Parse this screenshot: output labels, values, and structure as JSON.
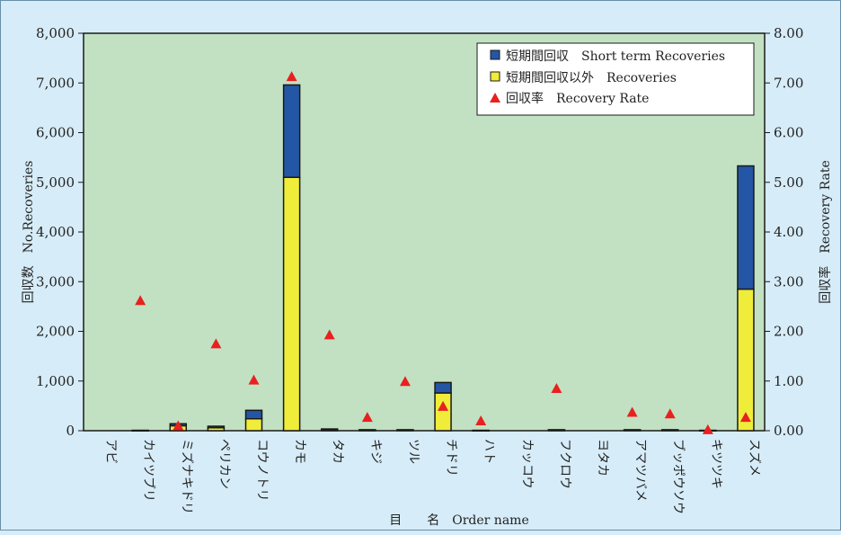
{
  "chart_data": {
    "type": "bar",
    "title": "",
    "xlabel": "目　　名　Order name",
    "ylabel": "回収数　No.Recoveries",
    "ylabel_right": "回収率　Recovery Rate",
    "ylim": [
      0,
      8000
    ],
    "ylim_right": [
      0,
      8
    ],
    "yticks": [
      "0",
      "1,000",
      "2,000",
      "3,000",
      "4,000",
      "5,000",
      "6,000",
      "7,000",
      "8,000"
    ],
    "yticks_right": [
      "0.00",
      "1.00",
      "2.00",
      "3.00",
      "4.00",
      "5.00",
      "6.00",
      "7.00",
      "8.00"
    ],
    "stacked": true,
    "grid": false,
    "legend_position": "top-right",
    "categories": [
      "アビ",
      "カイツブリ",
      "ミズナキドリ",
      "ペリカン",
      "コウノトリ",
      "カモ",
      "タカ",
      "キジ",
      "ツル",
      "チドリ",
      "ハト",
      "カッコウ",
      "フクロウ",
      "ヨタカ",
      "アマツバメ",
      "ブッポウソウ",
      "キツツキ",
      "スズメ"
    ],
    "series": [
      {
        "name": "短期間回収以外　Recoveries",
        "kind": "bar",
        "color": "#f0ec3a",
        "values": [
          0,
          5,
          100,
          60,
          240,
          5100,
          20,
          10,
          10,
          760,
          5,
          0,
          10,
          0,
          10,
          10,
          5,
          2850
        ]
      },
      {
        "name": "短期間回収　Short term Recoveries",
        "kind": "bar",
        "color": "#2456a6",
        "values": [
          0,
          3,
          40,
          30,
          170,
          1860,
          15,
          10,
          10,
          210,
          3,
          0,
          10,
          0,
          10,
          10,
          3,
          2480
        ]
      },
      {
        "name": "回収率　Recovery Rate",
        "kind": "marker",
        "axis": "right",
        "color": "#e82020",
        "values": [
          null,
          2.62,
          0.1,
          1.75,
          1.02,
          7.13,
          1.93,
          0.27,
          0.99,
          0.49,
          0.2,
          null,
          0.85,
          null,
          0.37,
          0.34,
          0.02,
          0.27
        ]
      }
    ]
  },
  "colors": {
    "background": "#d6ecf8",
    "plot_area": "#c2e1c2",
    "bar_outline": "#1a1a1a"
  }
}
